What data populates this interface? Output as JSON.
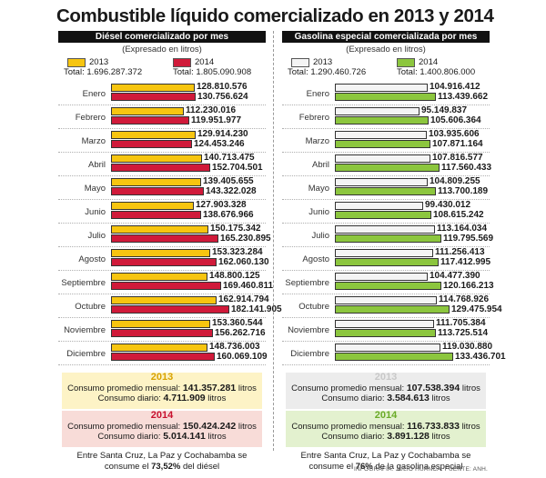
{
  "title": "Combustible líquido comercializado en 2013 y 2014",
  "credit": "INFOGRAFÍA: JULIO HUANCA. FUENTE: ANH.",
  "colors": {
    "diesel_2013": "#f7c510",
    "diesel_2014": "#d01a3a",
    "gas_2013": "#f4f4f4",
    "gas_2014": "#8cc63e"
  },
  "chart_data": [
    {
      "type": "bar",
      "title": "Diésel comercializado por mes",
      "subtitle": "(Expresado en litros)",
      "orientation": "horizontal",
      "categories": [
        "Enero",
        "Febrero",
        "Marzo",
        "Abril",
        "Mayo",
        "Junio",
        "Julio",
        "Agosto",
        "Septiembre",
        "Octubre",
        "Noviembre",
        "Diciembre"
      ],
      "series": [
        {
          "name": "2013",
          "total_label": "Total: 1.696.287.372",
          "values": [
            128810576,
            112230016,
            129914230,
            140713475,
            139405655,
            127903328,
            150175342,
            153323284,
            148800125,
            162914794,
            153360544,
            148736003
          ],
          "labels": [
            "128.810.576",
            "112.230.016",
            "129.914.230",
            "140.713.475",
            "139.405.655",
            "127.903.328",
            "150.175.342",
            "153.323.284",
            "148.800.125",
            "162.914.794",
            "153.360.544",
            "148.736.003"
          ]
        },
        {
          "name": "2014",
          "total_label": "Total: 1.805.090.908",
          "values": [
            130756624,
            119951977,
            124453246,
            152704501,
            143322028,
            138676966,
            165230895,
            162060130,
            169460811,
            182141905,
            156262716,
            160069109
          ],
          "labels": [
            "130.756.624",
            "119.951.977",
            "124.453.246",
            "152.704.501",
            "143.322.028",
            "138.676.966",
            "165.230.895",
            "162.060.130",
            "169.460.811",
            "182.141.905",
            "156.262.716",
            "160.069.109"
          ]
        }
      ],
      "xlim": [
        0,
        182141905
      ]
    },
    {
      "type": "bar",
      "title": "Gasolina especial comercializada por mes",
      "subtitle": "(Expresado en litros)",
      "orientation": "horizontal",
      "categories": [
        "Enero",
        "Febrero",
        "Marzo",
        "Abril",
        "Mayo",
        "Junio",
        "Julio",
        "Agosto",
        "Septiembre",
        "Octubre",
        "Noviembre",
        "Diciembre"
      ],
      "series": [
        {
          "name": "2013",
          "total_label": "Total: 1.290.460.726",
          "values": [
            104916412,
            95149837,
            103935606,
            107816577,
            104809255,
            99430012,
            113164034,
            111256413,
            104477390,
            114768926,
            111705384,
            119030880
          ],
          "labels": [
            "104.916.412",
            "95.149.837",
            "103.935.606",
            "107.816.577",
            "104.809.255",
            "99.430.012",
            "113.164.034",
            "111.256.413",
            "104.477.390",
            "114.768.926",
            "111.705.384",
            "119.030.880"
          ]
        },
        {
          "name": "2014",
          "total_label": "Total: 1.400.806.000",
          "values": [
            113439662,
            105606364,
            107871164,
            117560433,
            113700189,
            108615242,
            119795569,
            117412995,
            120166213,
            129475954,
            113725514,
            133436701
          ],
          "labels": [
            "113.439.662",
            "105.606.364",
            "107.871.164",
            "117.560.433",
            "113.700.189",
            "108.615.242",
            "119.795.569",
            "117.412.995",
            "120.166.213",
            "129.475.954",
            "113.725.514",
            "133.436.701"
          ]
        }
      ],
      "xlim": [
        0,
        133436701
      ]
    }
  ],
  "summaries": {
    "diesel": {
      "y2013": {
        "year": "2013",
        "monthly_label": "Consumo promedio mensual:",
        "monthly_value": "141.357.281",
        "daily_label": "Consumo diario:",
        "daily_value": "4.711.909",
        "unit": "litros"
      },
      "y2014": {
        "year": "2014",
        "monthly_label": "Consumo promedio mensual:",
        "monthly_value": "150.424.242",
        "daily_label": "Consumo diario:",
        "daily_value": "5.014.141",
        "unit": "litros"
      },
      "note_pre": "Entre Santa Cruz, La Paz y Cochabamba se consume el",
      "note_pct": "73,52%",
      "note_post": "del diésel"
    },
    "gas": {
      "y2013": {
        "year": "2013",
        "monthly_label": "Consumo promedio mensual:",
        "monthly_value": "107.538.394",
        "daily_label": "Consumo diario:",
        "daily_value": "3.584.613",
        "unit": "litros"
      },
      "y2014": {
        "year": "2014",
        "monthly_label": "Consumo promedio mensual:",
        "monthly_value": "116.733.833",
        "daily_label": "Consumo diario:",
        "daily_value": "3.891.128",
        "unit": "litros"
      },
      "note_pre": "Entre Santa Cruz, La Paz y Cochabamba se consume el",
      "note_pct": "76%",
      "note_post": "de la gasolina especial"
    }
  }
}
